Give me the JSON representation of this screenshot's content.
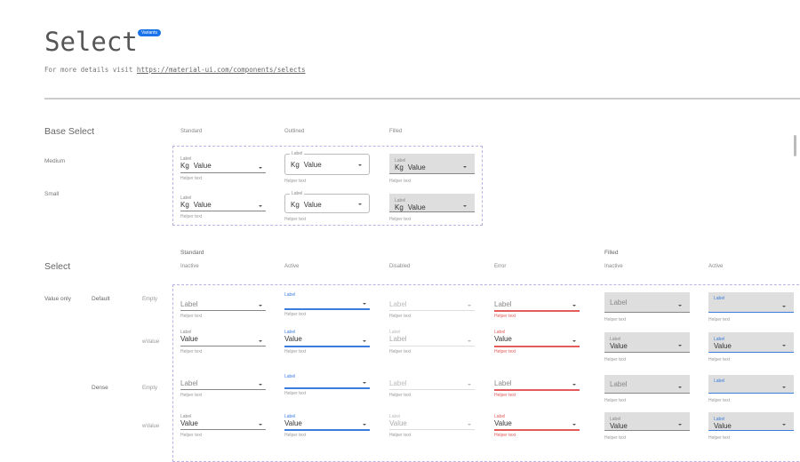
{
  "header": {
    "title": "Select",
    "badge": "Variants",
    "subtitle_prefix": "For more details visit ",
    "link": "https://material-ui.com/components/selects"
  },
  "colors": {
    "accent": "#3b7ddd",
    "error": "#e45b5b",
    "badge": "#1a73e8",
    "fill": "#dedede",
    "dashed_border": "#b8b4e8"
  },
  "base": {
    "title": "Base Select",
    "columns": [
      "Standard",
      "Outlined",
      "Filled"
    ],
    "rows": [
      {
        "name": "Medium",
        "fields": [
          {
            "label": "Label",
            "prefix": "Kg",
            "value": "Value",
            "helper": "Helper text"
          },
          {
            "label": "Label",
            "prefix": "Kg",
            "value": "Value",
            "helper": "Helper text"
          },
          {
            "label": "Label",
            "prefix": "Kg",
            "value": "Value",
            "helper": "Helper text"
          }
        ]
      },
      {
        "name": "Small",
        "fields": [
          {
            "label": "Label",
            "prefix": "Kg",
            "value": "Value",
            "helper": "Helper text"
          },
          {
            "label": "Label",
            "prefix": "Kg",
            "value": "Value",
            "helper": "Helper text"
          },
          {
            "label": "Label",
            "prefix": "Kg",
            "value": "Value",
            "helper": "Helper text"
          }
        ]
      }
    ]
  },
  "select": {
    "title": "Select",
    "groups": [
      "Standard",
      "Filled"
    ],
    "columns": [
      "Inactive",
      "Active",
      "Disabled",
      "Error",
      "Inactive",
      "Active"
    ],
    "section": "Value only",
    "sizes": [
      "Default",
      "Dense"
    ],
    "rows": [
      {
        "kind": "Empty",
        "fields": [
          {
            "placeholder": "Label",
            "helper": "Helper text"
          },
          {
            "label": "Label",
            "helper": "Helper text"
          },
          {
            "placeholder": "Label",
            "helper": "Helper text"
          },
          {
            "placeholder": "Label",
            "helper": "Helper text"
          },
          {
            "placeholder": "Label",
            "helper": "Helper text"
          },
          {
            "label": "Label",
            "helper": "Helper text"
          }
        ]
      },
      {
        "kind": "wValue",
        "fields": [
          {
            "label": "Label",
            "value": "Value",
            "helper": "Helper text"
          },
          {
            "label": "Label",
            "value": "Value",
            "helper": "Helper text"
          },
          {
            "label": "Label",
            "value": "Label",
            "helper": "Helper text"
          },
          {
            "label": "Label",
            "value": "Value",
            "helper": "Helper text"
          },
          {
            "label": "Label",
            "value": "Value",
            "helper": "Helper text"
          },
          {
            "label": "Label",
            "value": "Value",
            "helper": "Helper text"
          }
        ]
      },
      {
        "kind": "Empty",
        "fields": [
          {
            "placeholder": "Label",
            "helper": "Helper text"
          },
          {
            "label": "Label",
            "helper": "Helper text"
          },
          {
            "placeholder": "Label",
            "helper": "Helper text"
          },
          {
            "placeholder": "Label",
            "helper": "Helper text"
          },
          {
            "placeholder": "Label",
            "helper": "Helper text"
          },
          {
            "label": "Label",
            "helper": "Helper text"
          }
        ]
      },
      {
        "kind": "wValue",
        "fields": [
          {
            "label": "Label",
            "value": "Value",
            "helper": "Helper text"
          },
          {
            "label": "Label",
            "value": "Value",
            "helper": "Helper text"
          },
          {
            "label": "Label",
            "value": "Value",
            "helper": "Helper text"
          },
          {
            "label": "Label",
            "value": "Value",
            "helper": "Helper text"
          },
          {
            "label": "Label",
            "value": "Value",
            "helper": "Helper text"
          },
          {
            "label": "Label",
            "value": "Value",
            "helper": "Helper text"
          }
        ]
      }
    ]
  }
}
